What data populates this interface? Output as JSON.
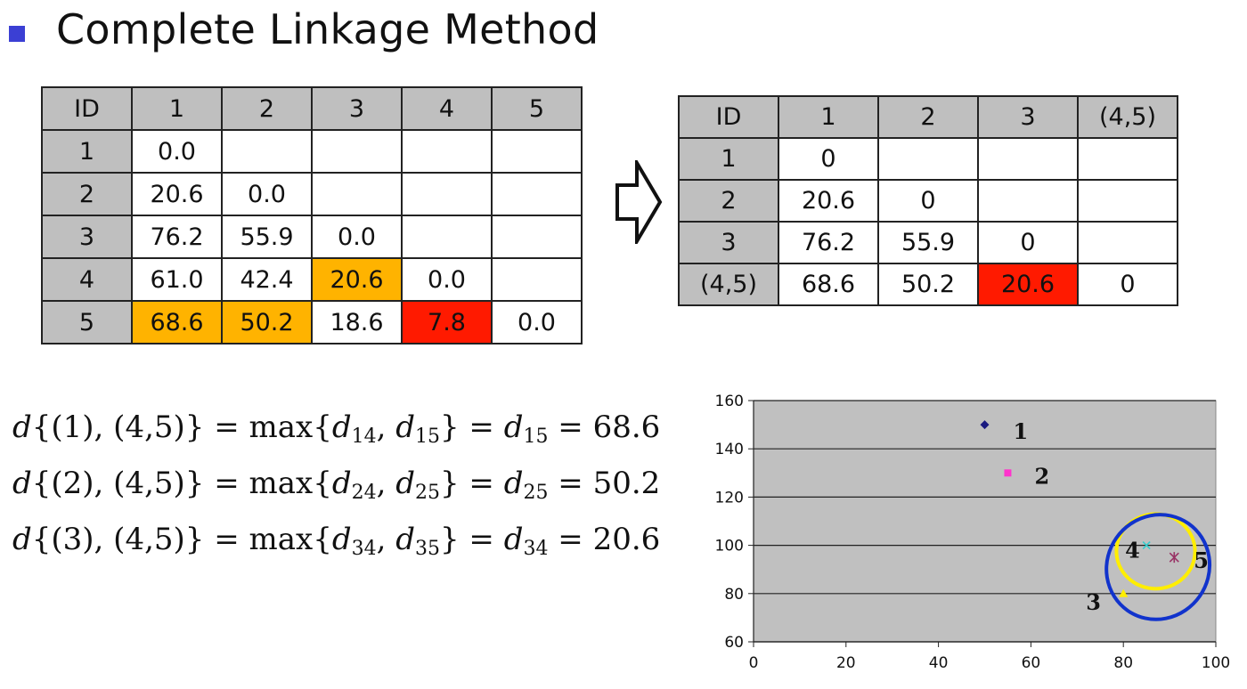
{
  "title": "Complete Linkage Method",
  "table_left": {
    "header": [
      "ID",
      "1",
      "2",
      "3",
      "4",
      "5"
    ],
    "rows": [
      {
        "id": "1",
        "cells": [
          {
            "v": "0.0",
            "c": ""
          },
          {
            "v": "",
            "c": ""
          },
          {
            "v": "",
            "c": ""
          },
          {
            "v": "",
            "c": ""
          },
          {
            "v": "",
            "c": ""
          }
        ]
      },
      {
        "id": "2",
        "cells": [
          {
            "v": "20.6",
            "c": ""
          },
          {
            "v": "0.0",
            "c": ""
          },
          {
            "v": "",
            "c": ""
          },
          {
            "v": "",
            "c": ""
          },
          {
            "v": "",
            "c": ""
          }
        ]
      },
      {
        "id": "3",
        "cells": [
          {
            "v": "76.2",
            "c": ""
          },
          {
            "v": "55.9",
            "c": ""
          },
          {
            "v": "0.0",
            "c": ""
          },
          {
            "v": "",
            "c": ""
          },
          {
            "v": "",
            "c": ""
          }
        ]
      },
      {
        "id": "4",
        "cells": [
          {
            "v": "61.0",
            "c": ""
          },
          {
            "v": "42.4",
            "c": ""
          },
          {
            "v": "20.6",
            "c": "orange"
          },
          {
            "v": "0.0",
            "c": ""
          },
          {
            "v": "",
            "c": ""
          }
        ]
      },
      {
        "id": "5",
        "cells": [
          {
            "v": "68.6",
            "c": "orange"
          },
          {
            "v": "50.2",
            "c": "orange"
          },
          {
            "v": "18.6",
            "c": ""
          },
          {
            "v": "7.8",
            "c": "red"
          },
          {
            "v": "0.0",
            "c": ""
          }
        ]
      }
    ]
  },
  "table_right": {
    "header": [
      "ID",
      "1",
      "2",
      "3",
      "(4,5)"
    ],
    "rows": [
      {
        "id": "1",
        "cells": [
          {
            "v": "0",
            "c": ""
          },
          {
            "v": "",
            "c": ""
          },
          {
            "v": "",
            "c": ""
          },
          {
            "v": "",
            "c": ""
          }
        ]
      },
      {
        "id": "2",
        "cells": [
          {
            "v": "20.6",
            "c": ""
          },
          {
            "v": "0",
            "c": ""
          },
          {
            "v": "",
            "c": ""
          },
          {
            "v": "",
            "c": ""
          }
        ]
      },
      {
        "id": "3",
        "cells": [
          {
            "v": "76.2",
            "c": ""
          },
          {
            "v": "55.9",
            "c": ""
          },
          {
            "v": "0",
            "c": ""
          },
          {
            "v": "",
            "c": ""
          }
        ]
      },
      {
        "id": "(4,5)",
        "cells": [
          {
            "v": "68.6",
            "c": ""
          },
          {
            "v": "50.2",
            "c": ""
          },
          {
            "v": "20.6",
            "c": "red"
          },
          {
            "v": "0",
            "c": ""
          }
        ]
      }
    ]
  },
  "formulas": [
    {
      "left": "(1), (4,5)",
      "a": "14",
      "b": "15",
      "result_sub": "15",
      "value": "68.6"
    },
    {
      "left": "(2), (4,5)",
      "a": "24",
      "b": "25",
      "result_sub": "25",
      "value": "50.2"
    },
    {
      "left": "(3), (4,5)",
      "a": "34",
      "b": "35",
      "result_sub": "34",
      "value": "20.6"
    }
  ],
  "chart_data": {
    "type": "scatter",
    "xlim": [
      0,
      100
    ],
    "ylim": [
      60,
      160
    ],
    "x_ticks": [
      0,
      20,
      40,
      60,
      80,
      100
    ],
    "y_ticks": [
      60,
      80,
      100,
      120,
      140,
      160
    ],
    "grid": "horizontal",
    "points": [
      {
        "label": "1",
        "x": 50,
        "y": 150,
        "color": "#1a1a80",
        "marker": "diamond"
      },
      {
        "label": "2",
        "x": 55,
        "y": 130,
        "color": "#ff33cc",
        "marker": "square"
      },
      {
        "label": "3",
        "x": 80,
        "y": 80,
        "color": "#ffee00",
        "marker": "triangle"
      },
      {
        "label": "4",
        "x": 85,
        "y": 100,
        "color": "#33cccc",
        "marker": "x"
      },
      {
        "label": "5",
        "x": 91,
        "y": 95,
        "color": "#993366",
        "marker": "star"
      }
    ],
    "ellipses": [
      {
        "cx": 87,
        "cy": 97.5,
        "rx": 8.5,
        "ry": 15.5,
        "rotate": 0,
        "color": "#ffee00"
      },
      {
        "cx": 87.5,
        "cy": 91,
        "rx": 11,
        "ry": 22,
        "rotate": 35,
        "color": "#1133cc"
      }
    ]
  }
}
